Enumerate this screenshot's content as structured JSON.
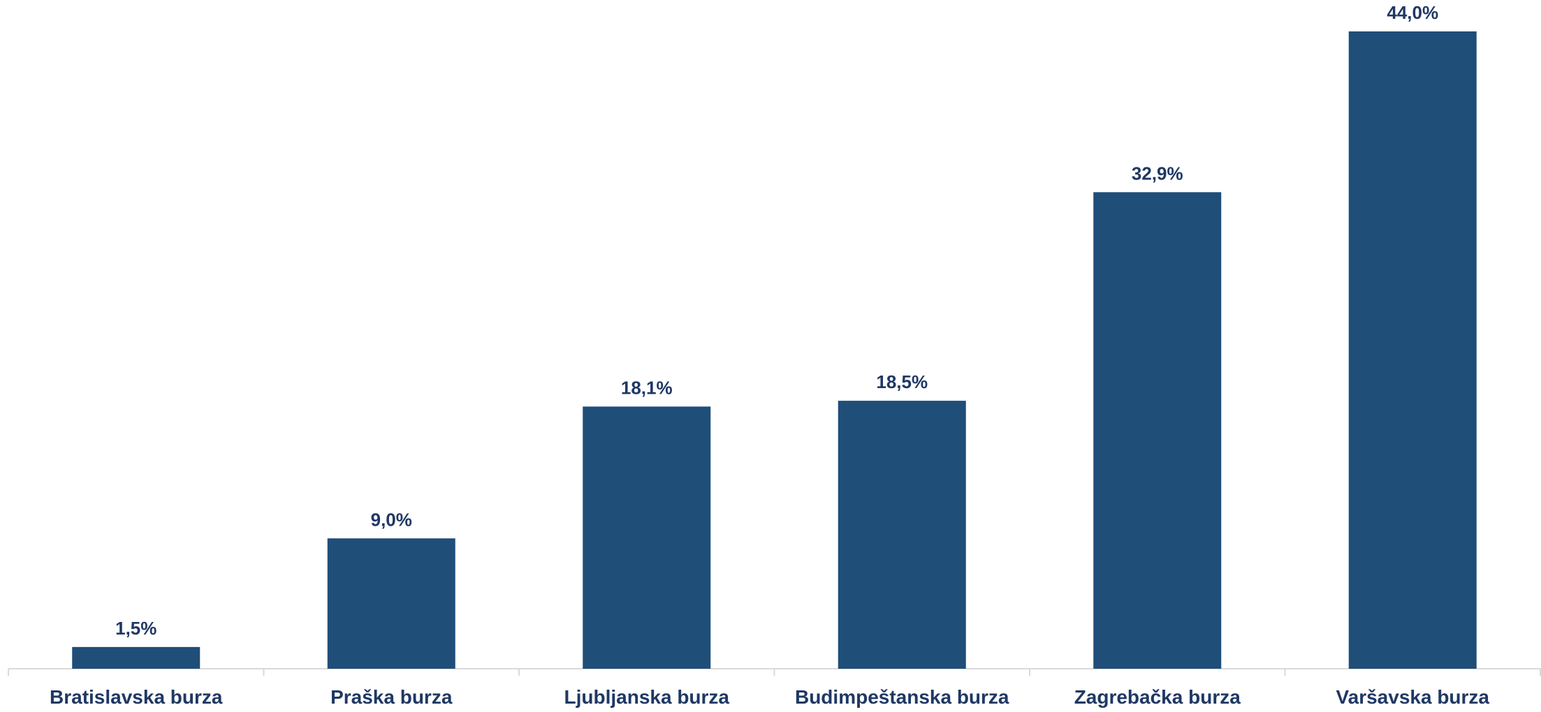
{
  "chart_data": {
    "type": "bar",
    "title": "",
    "xlabel": "",
    "ylabel": "",
    "categories": [
      "Bratislavska burza",
      "Praška burza",
      "Ljubljanska burza",
      "Budimpeštanska burza",
      "Zagrebačka burza",
      "Varšavska burza"
    ],
    "values": [
      1.5,
      9.0,
      18.1,
      18.5,
      32.9,
      44.0
    ],
    "data_labels": [
      "1,5%",
      "9,0%",
      "18,1%",
      "18,5%",
      "32,9%",
      "44,0%"
    ],
    "ylim": [
      0,
      45
    ],
    "grid": false,
    "legend": "none",
    "colors": {
      "bar": "#1F4E79",
      "label": "#1F3864",
      "axis": "#D9D9D9"
    }
  }
}
